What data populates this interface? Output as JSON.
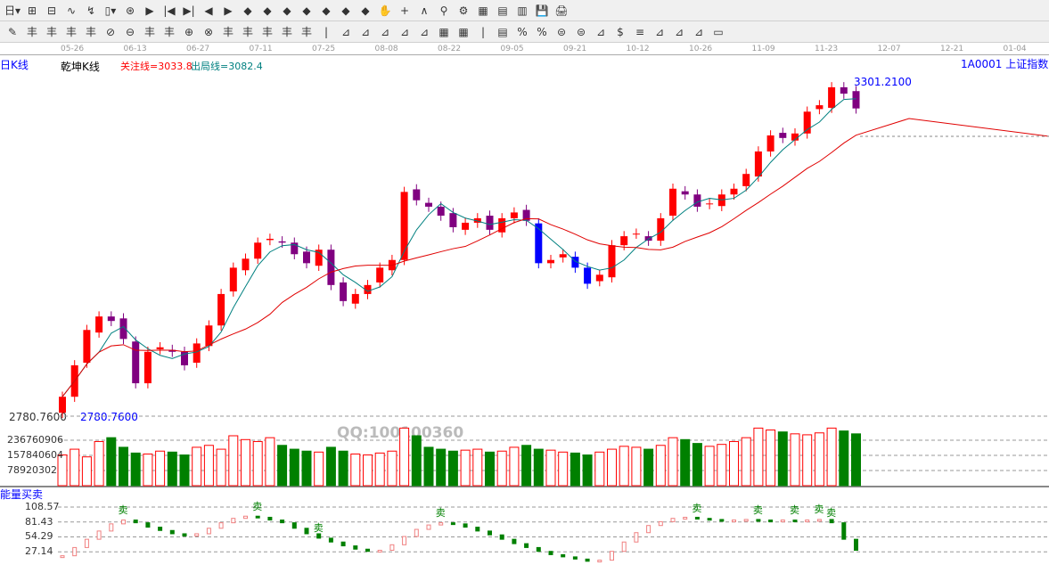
{
  "toolbar": {
    "row1": [
      "日▾",
      "⊞",
      "⊟",
      "∿",
      "↯",
      "▯▾",
      "⊛",
      "▶",
      "|◀",
      "▶|",
      "◀",
      "▶",
      "◆",
      "◆",
      "◆",
      "◆",
      "◆",
      "◆",
      "◆",
      "✋",
      "+",
      "∧",
      "⚲",
      "⚙",
      "▦",
      "▤",
      "▥",
      "💾",
      "🖨"
    ],
    "row2": [
      "✎",
      "丰",
      "丰",
      "丰",
      "丰",
      "⊘",
      "⊖",
      "丰",
      "丰",
      "⊕",
      "⊗",
      "丰",
      "丰",
      "丰",
      "丰",
      "丰",
      "|",
      "⊿",
      "⊿",
      "⊿",
      "⊿",
      "⊿",
      "▦",
      "▦",
      "|",
      "▤",
      "%",
      "%",
      "⊜",
      "⊜",
      "⊿",
      "$",
      "≡",
      "⊿",
      "⊿",
      "⊿",
      "▭"
    ]
  },
  "date_ticks": [
    "05-26",
    "06-13",
    "06-27",
    "07-11",
    "07-25",
    "08-08",
    "08-22",
    "09-05",
    "09-21",
    "10-12",
    "10-26",
    "11-09",
    "11-23",
    "12-07",
    "12-21",
    "01-04"
  ],
  "period_label": "日K线",
  "indicator_name": "乾坤K线",
  "focus_line": "关注线=3033.8",
  "exit_line": "出局线=3082.4",
  "symbol": "1A0001 上证指数",
  "colors": {
    "up": "#ff0000",
    "down": "#800080",
    "blue": "#0000ff",
    "ma_short": "#008080",
    "ma_long": "#e00000",
    "vol_down": "#008000"
  },
  "chart_data": {
    "type": "candlestick",
    "price_axis": {
      "low_label": "2780.7600",
      "high_label": "3301.2100",
      "min": 2780.76,
      "max": 3301.21
    },
    "closes": [
      2811,
      2860,
      2915,
      2936,
      2929,
      2901,
      2832,
      2881,
      2888,
      2881,
      2860,
      2894,
      2922,
      2971,
      3012,
      3026,
      3051,
      3057,
      3051,
      3033,
      3019,
      3040,
      2985,
      2960,
      2971,
      2985,
      3012,
      3024,
      3130,
      3117,
      3107,
      3093,
      3075,
      3082,
      3089,
      3071,
      3089,
      3098,
      3085,
      3019,
      3024,
      3033,
      3012,
      2987,
      3001,
      3047,
      3061,
      3065,
      3054,
      3089,
      3135,
      3126,
      3107,
      3112,
      3126,
      3135,
      3158,
      3193,
      3218,
      3214,
      3221,
      3255,
      3265,
      3293,
      3283,
      3260
    ],
    "volume_ticks": [
      "236760906",
      "157840604",
      "78920302"
    ],
    "volume_millions": [
      160,
      190,
      150,
      230,
      250,
      200,
      170,
      165,
      180,
      175,
      160,
      200,
      210,
      190,
      260,
      240,
      230,
      250,
      210,
      190,
      180,
      175,
      200,
      180,
      165,
      160,
      170,
      180,
      300,
      260,
      200,
      190,
      180,
      185,
      190,
      175,
      180,
      200,
      210,
      190,
      185,
      175,
      170,
      160,
      175,
      190,
      205,
      200,
      190,
      210,
      250,
      240,
      220,
      205,
      215,
      230,
      250,
      300,
      290,
      280,
      270,
      265,
      275,
      300,
      285,
      270
    ]
  },
  "energy": {
    "title": "能量买卖",
    "ticks": [
      "108.57",
      "81.43",
      "54.29",
      "27.14"
    ],
    "max": 108.57,
    "values": [
      20,
      35,
      50,
      65,
      78,
      85,
      80,
      72,
      66,
      60,
      56,
      60,
      70,
      80,
      88,
      92,
      90,
      85,
      80,
      70,
      60,
      52,
      45,
      38,
      32,
      28,
      30,
      40,
      55,
      68,
      76,
      80,
      78,
      72,
      65,
      58,
      50,
      42,
      35,
      28,
      22,
      18,
      14,
      10,
      12,
      28,
      45,
      62,
      75,
      82,
      88,
      90,
      88,
      86,
      84,
      85,
      86,
      85,
      84,
      85,
      84,
      85,
      86,
      80,
      50,
      30
    ],
    "sell_label": "卖",
    "sell_indices": [
      5,
      16,
      21,
      31,
      52,
      57,
      60,
      62,
      63
    ]
  },
  "watermark": "QQ:100100360"
}
